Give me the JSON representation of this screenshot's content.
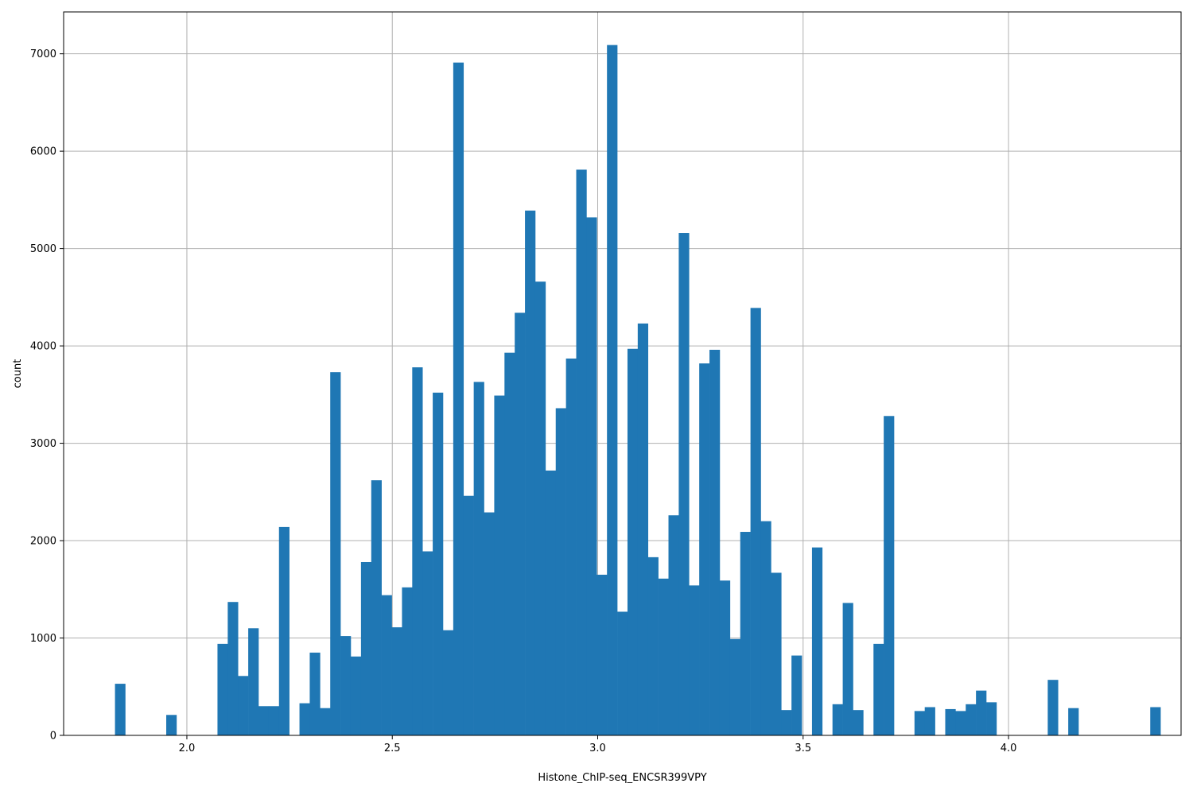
{
  "chart_data": {
    "type": "bar",
    "subtype": "histogram",
    "xlabel": "Histone_ChIP-seq_ENCSR399VPY",
    "ylabel": "count",
    "xlim": [
      1.7,
      4.42
    ],
    "ylim": [
      0,
      7430
    ],
    "grid": true,
    "bar_color": "#1f77b4",
    "grid_color": "#b0b0b0",
    "x_ticks": [
      2.0,
      2.5,
      3.0,
      3.5,
      4.0
    ],
    "x_tick_labels": [
      "2.0",
      "2.5",
      "3.0",
      "3.5",
      "4.0"
    ],
    "y_ticks": [
      0,
      1000,
      2000,
      3000,
      4000,
      5000,
      6000,
      7000
    ],
    "y_tick_labels": [
      "0",
      "1000",
      "2000",
      "3000",
      "4000",
      "5000",
      "6000",
      "7000"
    ],
    "bin_start": 1.825,
    "bin_width": 0.02495,
    "values": [
      530,
      0,
      0,
      0,
      0,
      210,
      0,
      0,
      0,
      0,
      940,
      1370,
      610,
      1100,
      300,
      300,
      2140,
      0,
      330,
      850,
      280,
      3730,
      1020,
      810,
      1780,
      2620,
      1440,
      1110,
      1520,
      3780,
      1890,
      3520,
      1080,
      6910,
      2460,
      3630,
      2290,
      3490,
      3930,
      4340,
      5390,
      4660,
      2720,
      3360,
      3870,
      5810,
      5320,
      1650,
      7090,
      1270,
      3970,
      4230,
      1830,
      1610,
      2260,
      5160,
      1540,
      3820,
      3960,
      1590,
      990,
      2090,
      4390,
      2200,
      1670,
      260,
      820,
      0,
      1930,
      0,
      320,
      1360,
      260,
      0,
      940,
      3280,
      0,
      0,
      250,
      290,
      0,
      270,
      250,
      320,
      460,
      340,
      0,
      0,
      0,
      0,
      0,
      570,
      0,
      280,
      0,
      0,
      0,
      0,
      0,
      0,
      0,
      290
    ]
  }
}
